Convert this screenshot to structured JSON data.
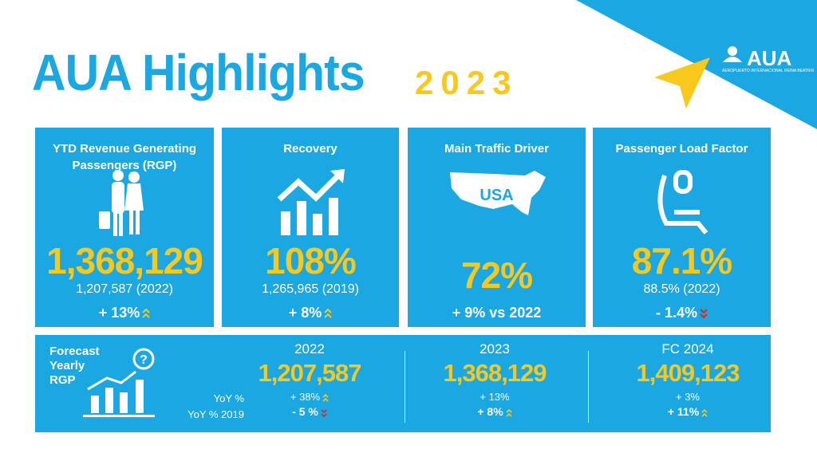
{
  "header": {
    "title": "AUA Highlights",
    "year": "2023"
  },
  "logo": {
    "name": "AUA",
    "subtitle": "AEROPUERTO INTERNACIONAL REINA BEATRIX"
  },
  "cards": [
    {
      "title": "YTD Revenue Generating Passengers (RGP)",
      "value": "1,368,129",
      "comparison": "1,207,587 (2022)",
      "change": "+ 13%"
    },
    {
      "title": "Recovery",
      "value": "108%",
      "comparison": "1,265,965 (2019)",
      "change": "+ 8%"
    },
    {
      "title": "Main Traffic Driver",
      "icon_label": "USA",
      "value": "72%",
      "change": "+ 9% vs 2022"
    },
    {
      "title": "Passenger Load Factor",
      "value": "87.1%",
      "comparison": "88.5% (2022)",
      "change": "- 1.4%"
    }
  ],
  "forecast": {
    "title": "Forecast Yearly RGP",
    "row_labels": [
      "YoY %",
      "YoY % 2019"
    ],
    "columns": [
      {
        "year": "2022",
        "value": "1,207,587",
        "yoy": "+ 38%",
        "yoy_2019": "- 5 %"
      },
      {
        "year": "2023",
        "value": "1,368,129",
        "yoy": "+ 13%",
        "yoy_2019": "+ 8%"
      },
      {
        "year": "FC 2024",
        "value": "1,409,123",
        "yoy": "+ 3%",
        "yoy_2019": "+ 11%"
      }
    ]
  }
}
